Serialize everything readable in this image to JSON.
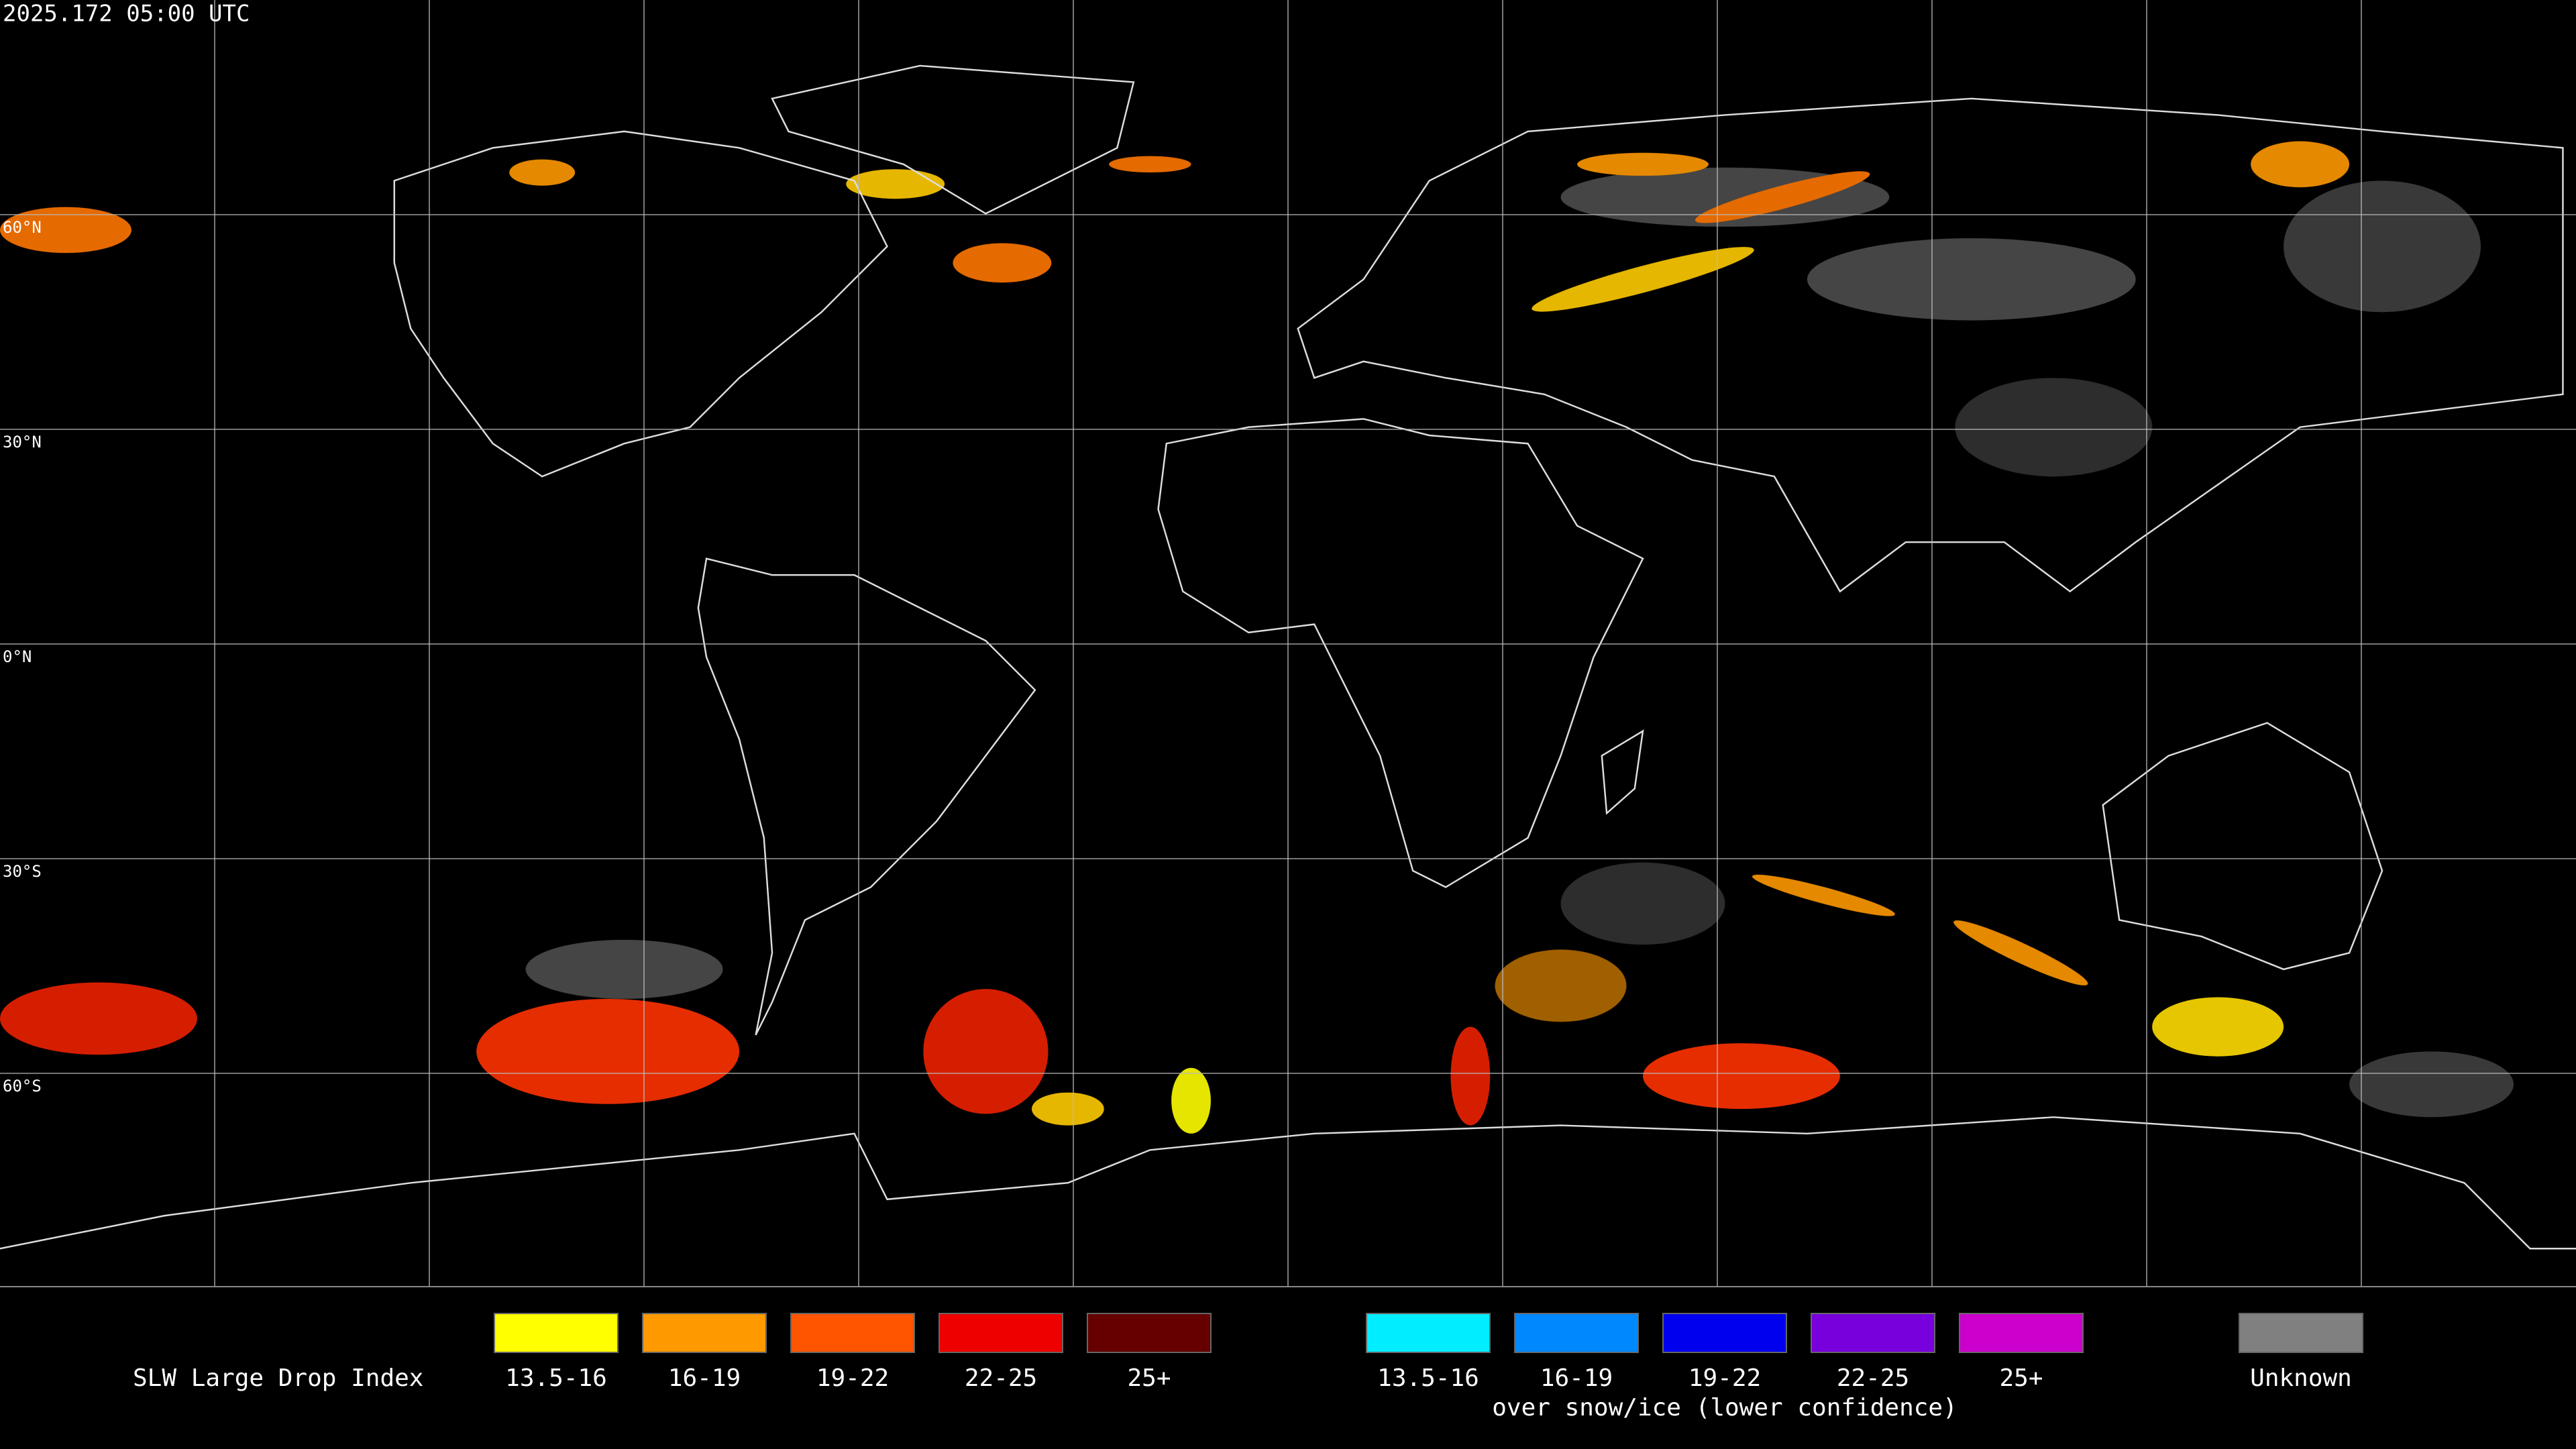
{
  "header": {
    "timestamp": "2025.172 05:00 UTC"
  },
  "map": {
    "latitude_labels": [
      "60°N",
      "30°N",
      "0°N",
      "30°S",
      "60°S"
    ]
  },
  "legend": {
    "title": "SLW Large Drop Index",
    "groups": [
      {
        "items": [
          {
            "label": "13.5-16",
            "color": "#ffff00"
          },
          {
            "label": "16-19",
            "color": "#ff9900"
          },
          {
            "label": "19-22",
            "color": "#ff5500"
          },
          {
            "label": "22-25",
            "color": "#ee0000"
          },
          {
            "label": "25+",
            "color": "#660000"
          }
        ]
      },
      {
        "items": [
          {
            "label": "13.5-16",
            "color": "#00eeff"
          },
          {
            "label": "16-19",
            "color": "#0088ff"
          },
          {
            "label": "19-22",
            "color": "#0000ee"
          },
          {
            "label": "22-25",
            "color": "#7700dd"
          },
          {
            "label": "25+",
            "color": "#cc00cc"
          }
        ],
        "caption": "over snow/ice (lower confidence)"
      },
      {
        "items": [
          {
            "label": "Unknown",
            "color": "#808080"
          }
        ]
      }
    ]
  }
}
